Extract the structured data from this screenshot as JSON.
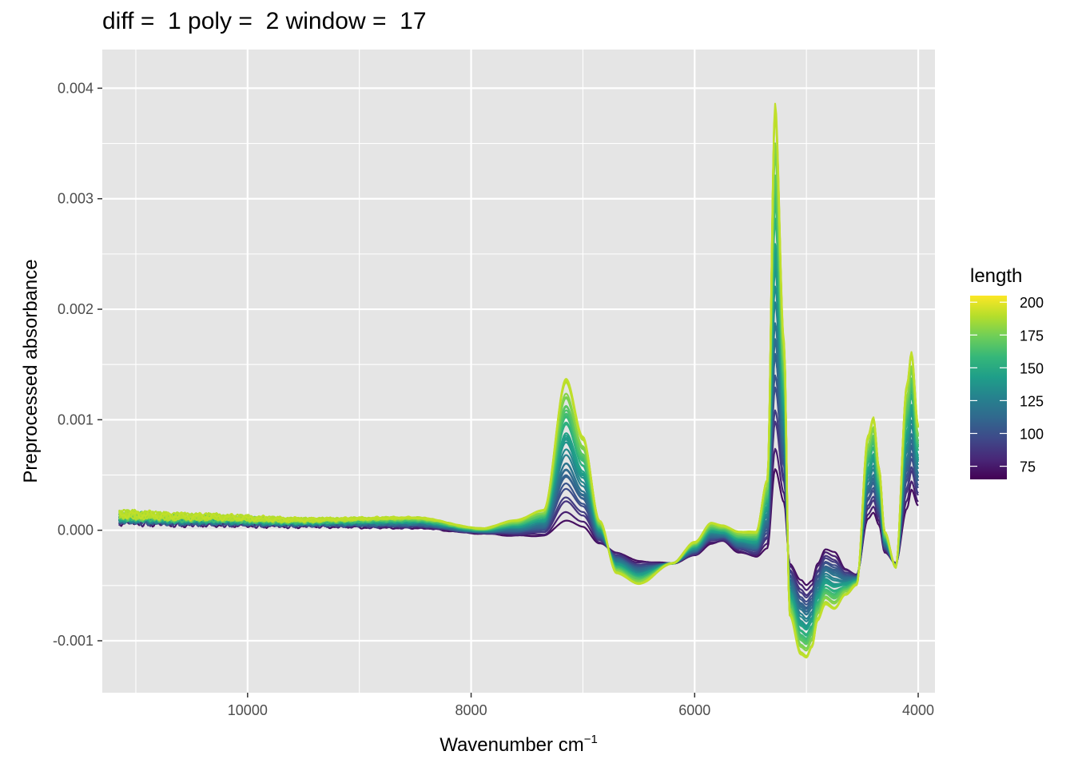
{
  "chart_data": {
    "type": "line",
    "title": "diff =  1 poly =  2 window =  17",
    "xlabel": "Wavenumber cm",
    "xlabel_superscript": "−1",
    "ylabel": "Preprocessed absorbance",
    "x_reversed": true,
    "xlim": [
      11300,
      3850
    ],
    "ylim": [
      -0.00147,
      0.00435
    ],
    "x_ticks": [
      10000,
      8000,
      6000,
      4000
    ],
    "x_tick_labels": [
      "10000",
      "8000",
      "6000",
      "4000"
    ],
    "y_ticks": [
      -0.001,
      0.0,
      0.001,
      0.002,
      0.003,
      0.004
    ],
    "y_tick_labels": [
      "-0.001",
      "0.000",
      "0.001",
      "0.002",
      "0.003",
      "0.004"
    ],
    "grid": true,
    "legend": {
      "title": "length",
      "placement": "right",
      "range": [
        65,
        205
      ],
      "ticks": [
        75,
        100,
        125,
        150,
        175,
        200
      ],
      "tick_labels": [
        "75",
        "100",
        "125",
        "150",
        "175",
        "200"
      ],
      "palette": "viridis"
    },
    "colors": {
      "panel_background": "#e5e5e5",
      "grid": "#ffffff",
      "viridis": [
        "#440154",
        "#482878",
        "#3e4989",
        "#31688e",
        "#26828e",
        "#1f9e89",
        "#35b779",
        "#6ece58",
        "#b5de2b",
        "#fde725"
      ]
    },
    "spectrum_profile": {
      "description_of_values": "Approximate preprocessed absorbance at selected wavenumbers for the lowest (length 70) and highest (length 200) curves; intermediate curves interpolate",
      "x": [
        11150,
        10500,
        9500,
        8500,
        7900,
        7600,
        7350,
        7150,
        7000,
        6850,
        6700,
        6500,
        6200,
        6000,
        5850,
        5750,
        5600,
        5450,
        5350,
        5280,
        5200,
        5150,
        5050,
        5000,
        4950,
        4900,
        4830,
        4750,
        4650,
        4550,
        4450,
        4400,
        4350,
        4300,
        4200,
        4100,
        4060,
        4000
      ],
      "low_length": [
        8e-05,
        6e-05,
        4e-05,
        2e-05,
        -3e-05,
        -5e-05,
        -5e-05,
        9e-05,
        3e-05,
        -0.00012,
        -0.0002,
        -0.00028,
        -0.0003,
        -0.00023,
        -0.00012,
        -0.0001,
        -0.0002,
        -0.00024,
        -0.00016,
        0.00055,
        0.00025,
        -0.0003,
        -0.00045,
        -0.0005,
        -0.00046,
        -0.0003,
        -0.00017,
        -0.0002,
        -0.00035,
        -0.0004,
        0.0001,
        0.00016,
        5e-05,
        -0.0002,
        -0.0003,
        0.0002,
        0.00037,
        0.00022
      ],
      "high_length": [
        0.00015,
        0.00013,
        0.0001,
        0.00012,
        2e-05,
        0.0001,
        0.0002,
        0.00146,
        0.0009,
        0.0001,
        -0.0004,
        -0.0005,
        -0.0003,
        -0.0001,
        8e-05,
        5e-05,
        0.0,
        0.0,
        0.0005,
        0.00408,
        0.0018,
        -0.0008,
        -0.00117,
        -0.0012,
        -0.0011,
        -0.00085,
        -0.0007,
        -0.00075,
        -0.0006,
        -0.0005,
        0.0009,
        0.00108,
        0.0006,
        0.0,
        -0.00034,
        0.0014,
        0.0017,
        0.001
      ]
    }
  }
}
